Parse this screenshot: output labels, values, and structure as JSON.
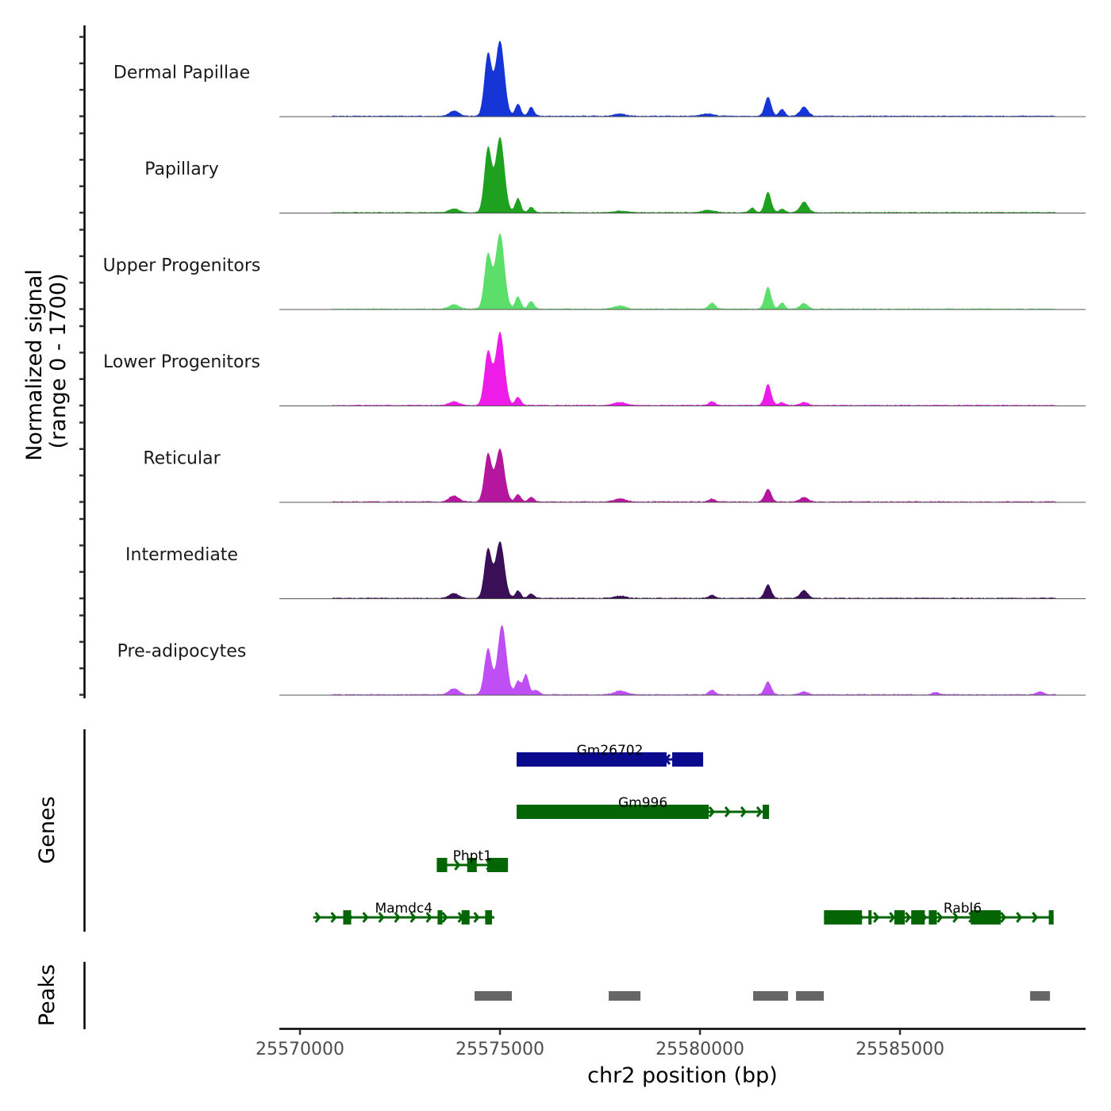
{
  "chart_data": {
    "type": "area",
    "title": "",
    "chrom": "chr2",
    "xlabel": "chr2 position (bp)",
    "ylabel": "Normalized signal\n(range 0 - 1700)",
    "ylabel_lines": [
      "Normalized signal",
      "(range 0 - 1700)"
    ],
    "y_range": [
      0,
      1700
    ],
    "xlim": [
      25569484,
      25589640
    ],
    "x_ticks": [
      25570000,
      25575000,
      25580000,
      25585000
    ],
    "x_tick_labels": [
      "25570000",
      "25575000",
      "25580000",
      "25585000"
    ],
    "grid": false,
    "signal_peaks_note": "approximate relative heights (fraction of 1700) of major signal peaks",
    "peak_positions_bp": [
      25573950,
      25574700,
      25575000,
      25575450,
      25575650,
      25580300,
      25581720,
      25582270,
      25581830
    ],
    "series": [
      {
        "name": "Dermal Papillae",
        "color": "#1535d6",
        "peaks": [
          [
            25573850,
            0.07,
            120
          ],
          [
            25574700,
            0.82,
            90
          ],
          [
            25575000,
            1.0,
            110
          ],
          [
            25575450,
            0.16,
            70
          ],
          [
            25575780,
            0.12,
            70
          ],
          [
            25578000,
            0.03,
            150
          ],
          [
            25580200,
            0.03,
            150
          ],
          [
            25581700,
            0.25,
            80
          ],
          [
            25582050,
            0.09,
            70
          ],
          [
            25582600,
            0.12,
            100
          ]
        ]
      },
      {
        "name": "Papillary",
        "color": "#1ea11e",
        "peaks": [
          [
            25573850,
            0.05,
            120
          ],
          [
            25574700,
            0.85,
            90
          ],
          [
            25575000,
            1.0,
            110
          ],
          [
            25575450,
            0.19,
            70
          ],
          [
            25575780,
            0.07,
            70
          ],
          [
            25578000,
            0.02,
            150
          ],
          [
            25580200,
            0.03,
            150
          ],
          [
            25581300,
            0.06,
            70
          ],
          [
            25581700,
            0.27,
            80
          ],
          [
            25582050,
            0.05,
            70
          ],
          [
            25582600,
            0.14,
            100
          ]
        ]
      },
      {
        "name": "Upper Progenitors",
        "color": "#5bde6a",
        "peaks": [
          [
            25573850,
            0.06,
            120
          ],
          [
            25574700,
            0.72,
            90
          ],
          [
            25575000,
            1.0,
            110
          ],
          [
            25575450,
            0.16,
            70
          ],
          [
            25575780,
            0.1,
            70
          ],
          [
            25578000,
            0.04,
            150
          ],
          [
            25580300,
            0.08,
            80
          ],
          [
            25581700,
            0.29,
            80
          ],
          [
            25582050,
            0.08,
            70
          ],
          [
            25582600,
            0.07,
            100
          ]
        ]
      },
      {
        "name": "Lower Progenitors",
        "color": "#ee1ce8",
        "peaks": [
          [
            25573850,
            0.05,
            120
          ],
          [
            25574700,
            0.71,
            90
          ],
          [
            25575000,
            0.97,
            110
          ],
          [
            25575450,
            0.11,
            70
          ],
          [
            25578000,
            0.04,
            150
          ],
          [
            25580300,
            0.05,
            80
          ],
          [
            25581700,
            0.28,
            80
          ],
          [
            25582050,
            0.04,
            70
          ],
          [
            25582600,
            0.04,
            100
          ]
        ]
      },
      {
        "name": "Reticular",
        "color": "#b4169e",
        "peaks": [
          [
            25573850,
            0.08,
            120
          ],
          [
            25574700,
            0.63,
            90
          ],
          [
            25575000,
            0.7,
            110
          ],
          [
            25575450,
            0.1,
            70
          ],
          [
            25575780,
            0.06,
            70
          ],
          [
            25578000,
            0.04,
            150
          ],
          [
            25580300,
            0.04,
            80
          ],
          [
            25581700,
            0.17,
            80
          ],
          [
            25582600,
            0.06,
            100
          ]
        ]
      },
      {
        "name": "Intermediate",
        "color": "#3b0f57",
        "peaks": [
          [
            25573850,
            0.06,
            120
          ],
          [
            25574700,
            0.65,
            90
          ],
          [
            25575000,
            0.75,
            110
          ],
          [
            25575450,
            0.1,
            70
          ],
          [
            25575780,
            0.06,
            70
          ],
          [
            25578000,
            0.03,
            150
          ],
          [
            25580300,
            0.04,
            80
          ],
          [
            25581700,
            0.18,
            80
          ],
          [
            25582600,
            0.1,
            100
          ]
        ]
      },
      {
        "name": "Pre-adipocytes",
        "color": "#c04ef5",
        "peaks": [
          [
            25573850,
            0.08,
            120
          ],
          [
            25574700,
            0.61,
            90
          ],
          [
            25575050,
            0.92,
            110
          ],
          [
            25575450,
            0.18,
            70
          ],
          [
            25575650,
            0.27,
            70
          ],
          [
            25575900,
            0.06,
            80
          ],
          [
            25578000,
            0.05,
            150
          ],
          [
            25580300,
            0.06,
            80
          ],
          [
            25581700,
            0.17,
            80
          ],
          [
            25582600,
            0.04,
            100
          ],
          [
            25585900,
            0.03,
            90
          ],
          [
            25588500,
            0.04,
            90
          ]
        ]
      }
    ],
    "genes": [
      {
        "name": "Gm26702",
        "strand": "+",
        "color": "#0a0a8e",
        "row": 0,
        "start": 25575416,
        "end": 25580079,
        "exons": [
          [
            25575416,
            25579166
          ],
          [
            25579305,
            25580079
          ]
        ]
      },
      {
        "name": "Gm996",
        "strand": "-",
        "color": "#046504",
        "row": 1,
        "start": 25575416,
        "end": 25581727,
        "exons": [
          [
            25575416,
            25580218
          ],
          [
            25581568,
            25581727
          ]
        ]
      },
      {
        "name": "Phpt1",
        "strand": "-",
        "color": "#046504",
        "row": 2,
        "start": 25573420,
        "end": 25575200,
        "exons": [
          [
            25573420,
            25573680
          ],
          [
            25574180,
            25574420
          ],
          [
            25574680,
            25575200
          ]
        ]
      },
      {
        "name": "Mamdc4",
        "strand": "-",
        "color": "#046504",
        "row": 3,
        "start": 25570330,
        "end": 25574860,
        "exons": [
          [
            25571080,
            25571280
          ],
          [
            25573440,
            25573560
          ],
          [
            25574040,
            25574240
          ],
          [
            25574630,
            25574800
          ]
        ]
      },
      {
        "name": "Rabl6",
        "strand": "-",
        "color": "#046504",
        "row": 3,
        "start": 25583100,
        "end": 25588840,
        "exons": [
          [
            25583100,
            25584050
          ],
          [
            25584210,
            25584270
          ],
          [
            25584860,
            25585120
          ],
          [
            25585280,
            25585620
          ],
          [
            25585720,
            25585920
          ],
          [
            25586770,
            25587520
          ],
          [
            25588720,
            25588840
          ]
        ]
      }
    ],
    "peaks_track": {
      "name": "Peaks",
      "color": "#666666",
      "regions": [
        [
          25574365,
          25575297
        ],
        [
          25577718,
          25578512
        ],
        [
          25581329,
          25582202
        ],
        [
          25582400,
          25583095
        ],
        [
          25588253,
          25588749
        ]
      ]
    },
    "panels": [
      "Normalized signal",
      "Genes",
      "Peaks"
    ],
    "panel_labels": {
      "genes": "Genes",
      "peaks": "Peaks"
    }
  }
}
